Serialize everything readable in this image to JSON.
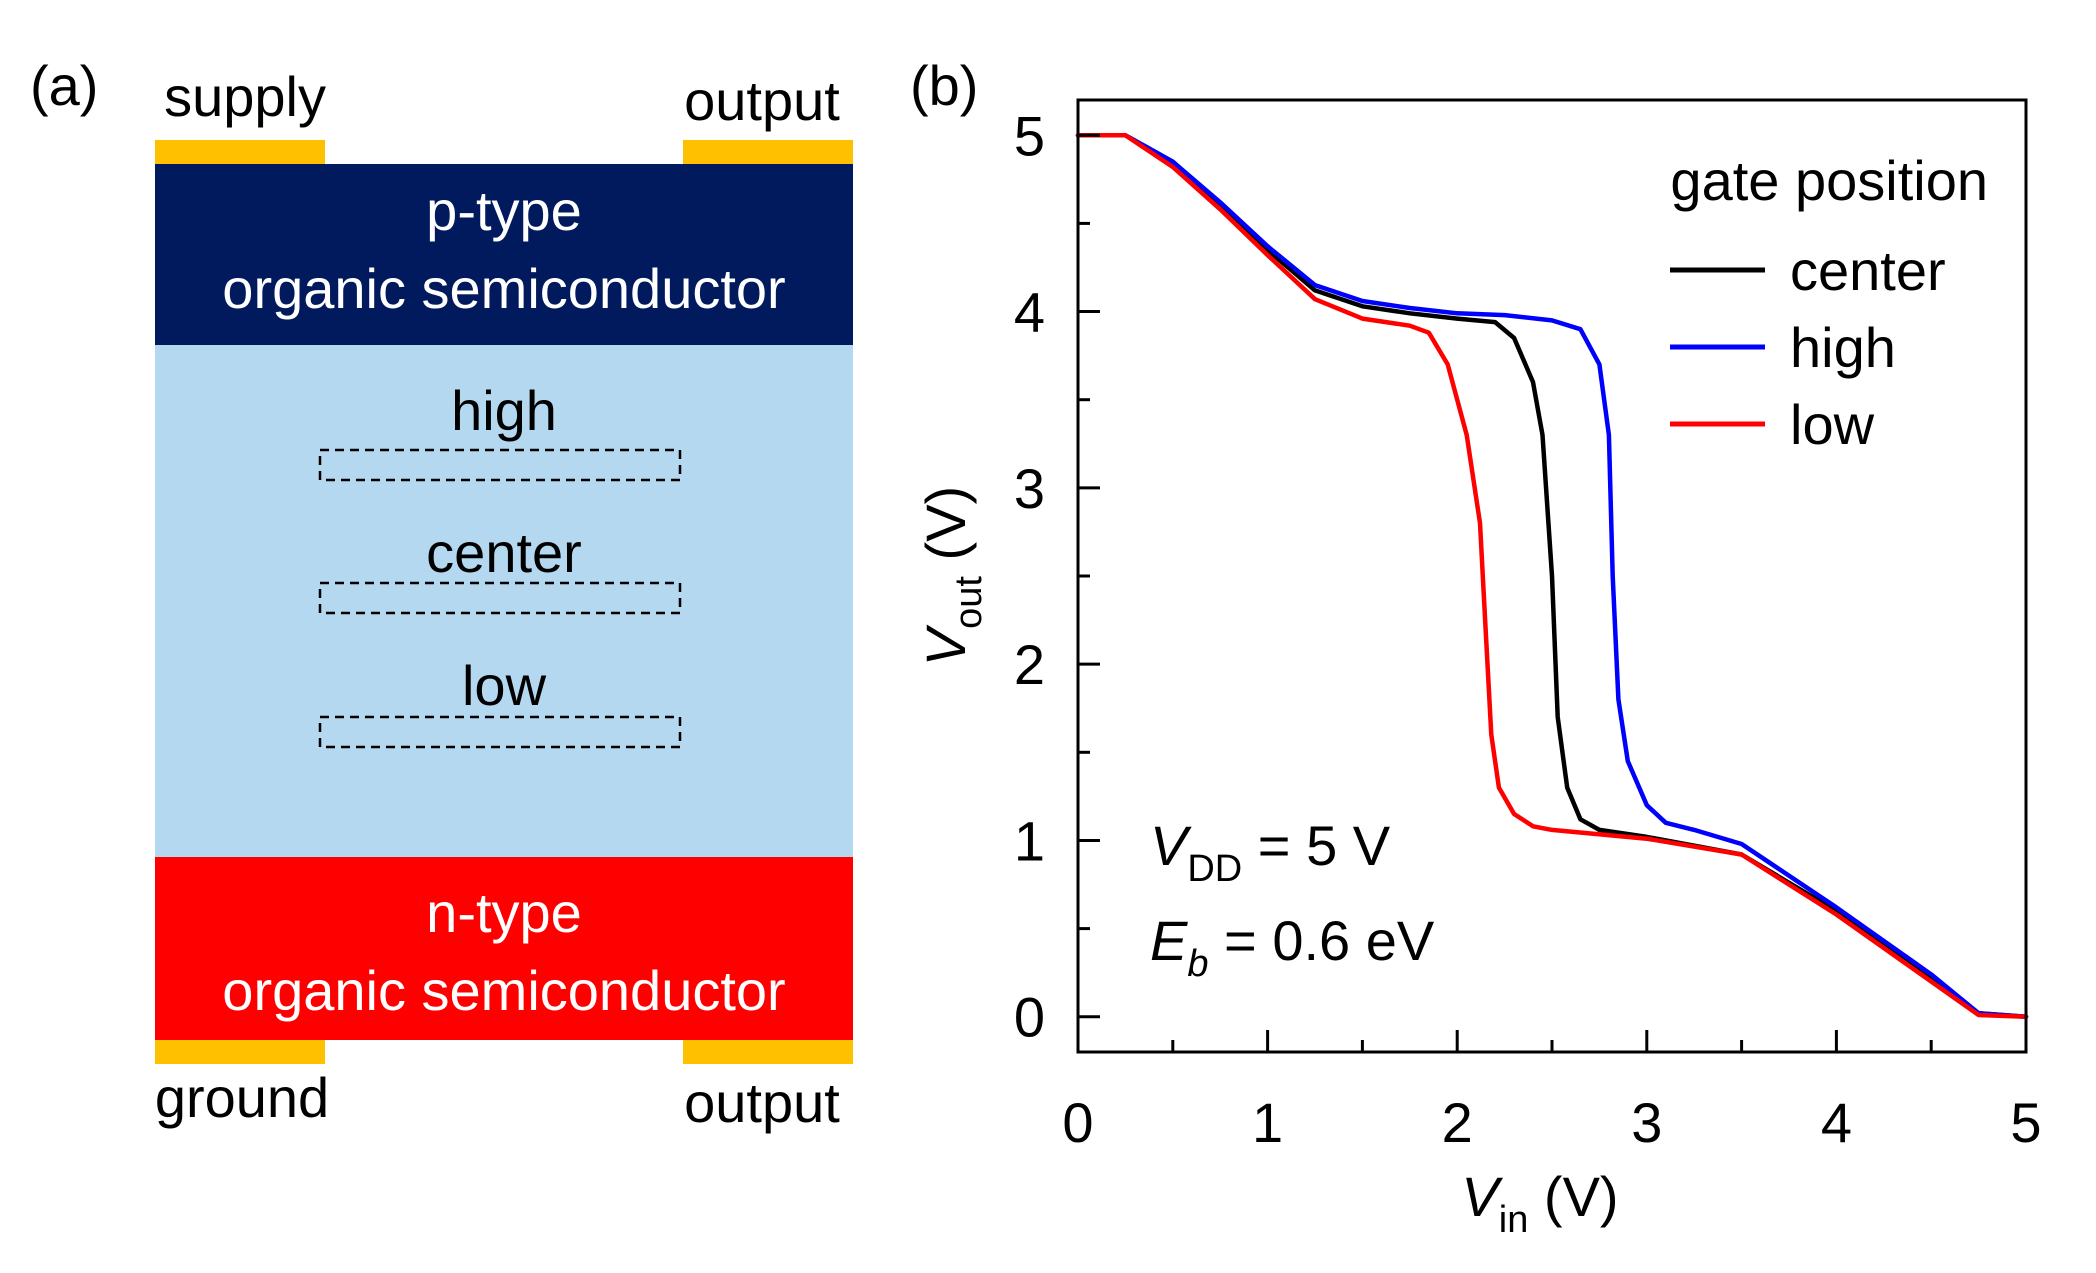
{
  "panel_a": {
    "label": "(a)",
    "top_left_contact": "supply",
    "top_right_contact": "output",
    "bottom_left_contact": "ground",
    "bottom_right_contact": "output",
    "p_layer": {
      "line1": "p-type",
      "line2": "organic semiconductor",
      "color": "#011a5e"
    },
    "n_layer": {
      "line1": "n-type",
      "line2": "organic semiconductor",
      "color": "#ff0000"
    },
    "dielectric_color": "#b3d8f0",
    "contact_color": "#ffc000",
    "gates": [
      {
        "label": "high"
      },
      {
        "label": "center"
      },
      {
        "label": "low"
      }
    ]
  },
  "chart_data": {
    "type": "line",
    "panel_label": "(b)",
    "xlabel": {
      "main": "V",
      "sub": "in",
      "unit": " (V)"
    },
    "ylabel": {
      "main": "V",
      "sub": "out",
      "unit": " (V)"
    },
    "xlim": [
      0,
      5
    ],
    "ylim": [
      -0.2,
      5.2
    ],
    "xticks": [
      "0",
      "1",
      "2",
      "3",
      "4",
      "5"
    ],
    "yticks": [
      "0",
      "1",
      "2",
      "3",
      "4",
      "5"
    ],
    "legend_title": "gate position",
    "legend_position": "top-right",
    "annotations": {
      "vdd": {
        "main": "V",
        "sub": "DD",
        "rest": " = 5 V"
      },
      "eb": {
        "main": "E",
        "sub": "b",
        "rest": " = 0.6 eV"
      }
    },
    "series": [
      {
        "name": "center",
        "color": "#000000",
        "x": [
          0,
          0.25,
          0.5,
          0.75,
          1.0,
          1.25,
          1.5,
          1.75,
          2.0,
          2.2,
          2.3,
          2.4,
          2.45,
          2.5,
          2.53,
          2.58,
          2.65,
          2.75,
          3.0,
          3.5,
          4.0,
          4.5,
          4.75,
          5.0
        ],
        "y": [
          5.0,
          5.0,
          4.85,
          4.6,
          4.35,
          4.12,
          4.03,
          3.99,
          3.96,
          3.94,
          3.85,
          3.6,
          3.3,
          2.5,
          1.7,
          1.3,
          1.12,
          1.06,
          1.02,
          0.92,
          0.6,
          0.22,
          0.02,
          0.0
        ]
      },
      {
        "name": "high",
        "color": "#0000ff",
        "x": [
          0,
          0.25,
          0.5,
          0.75,
          1.0,
          1.25,
          1.5,
          1.75,
          2.0,
          2.25,
          2.5,
          2.65,
          2.75,
          2.8,
          2.82,
          2.85,
          2.9,
          3.0,
          3.1,
          3.25,
          3.5,
          4.0,
          4.5,
          4.75,
          5.0
        ],
        "y": [
          5.0,
          5.0,
          4.85,
          4.62,
          4.37,
          4.15,
          4.06,
          4.02,
          3.99,
          3.98,
          3.95,
          3.9,
          3.7,
          3.3,
          2.5,
          1.8,
          1.45,
          1.2,
          1.1,
          1.06,
          0.98,
          0.62,
          0.24,
          0.02,
          0.0
        ]
      },
      {
        "name": "low",
        "color": "#ff0000",
        "x": [
          0,
          0.25,
          0.5,
          0.75,
          1.0,
          1.25,
          1.5,
          1.75,
          1.85,
          1.95,
          2.05,
          2.12,
          2.15,
          2.18,
          2.22,
          2.3,
          2.4,
          2.5,
          3.0,
          3.5,
          4.0,
          4.5,
          4.75,
          5.0
        ],
        "y": [
          5.0,
          5.0,
          4.82,
          4.58,
          4.32,
          4.07,
          3.96,
          3.92,
          3.88,
          3.7,
          3.3,
          2.8,
          2.2,
          1.6,
          1.3,
          1.15,
          1.08,
          1.06,
          1.01,
          0.92,
          0.58,
          0.2,
          0.01,
          0.0
        ]
      }
    ]
  }
}
